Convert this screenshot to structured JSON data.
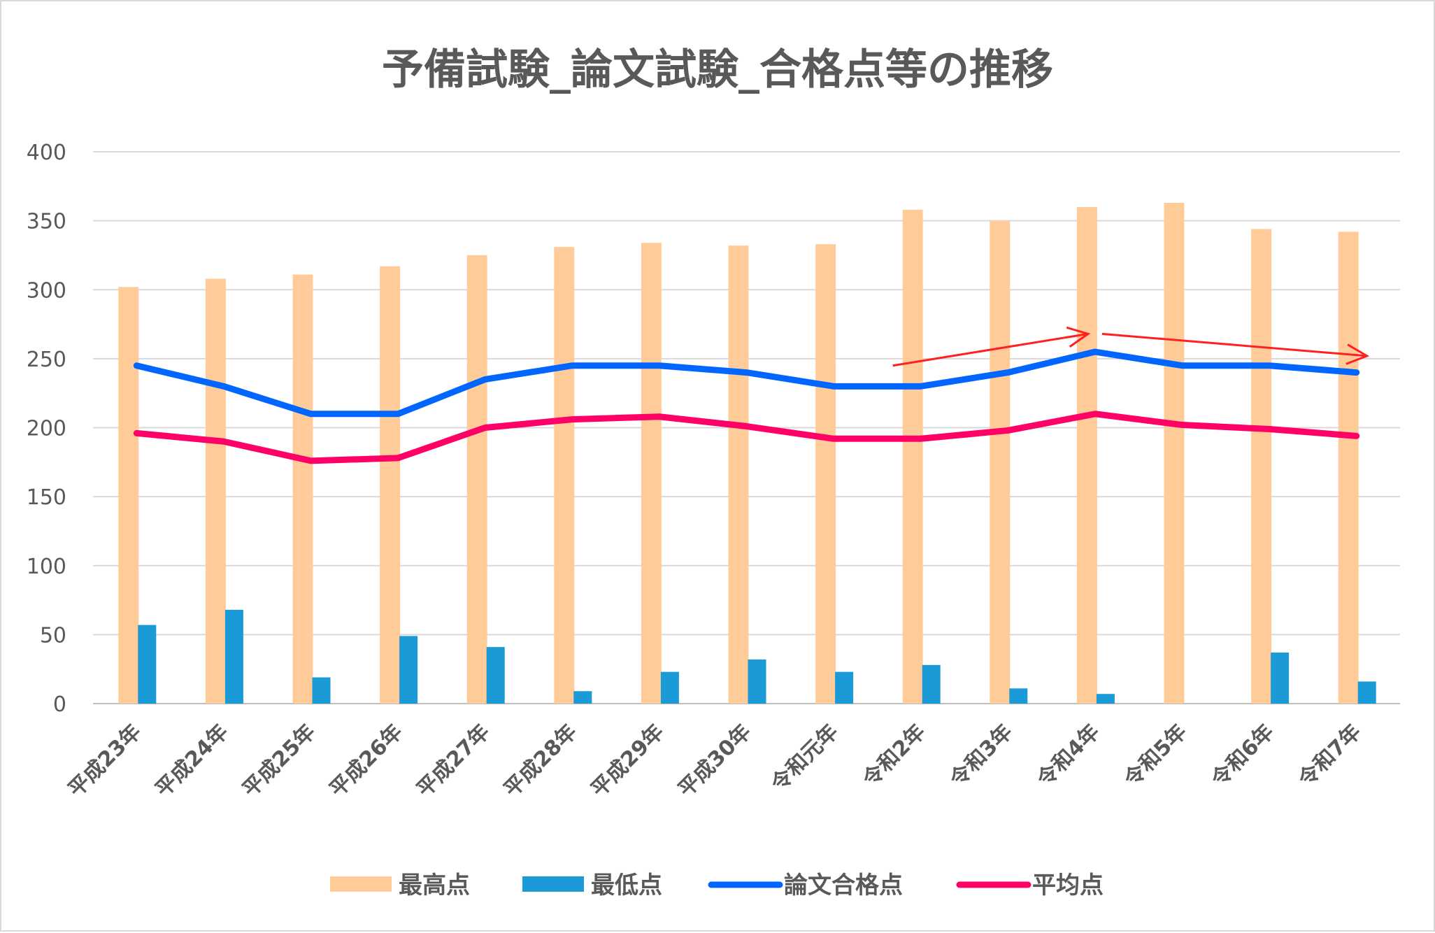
{
  "chart_data": {
    "type": "bar+line",
    "title": "予備試験_論文試験_合格点等の推移",
    "xlabel": "",
    "ylabel": "",
    "ylim": [
      0,
      400
    ],
    "yticks": [
      0,
      50,
      100,
      150,
      200,
      250,
      300,
      350,
      400
    ],
    "grid": true,
    "legend_position": "bottom",
    "categories": [
      "平成23年",
      "平成24年",
      "平成25年",
      "平成26年",
      "平成27年",
      "平成28年",
      "平成29年",
      "平成30年",
      "令和元年",
      "令和2年",
      "令和3年",
      "令和4年",
      "令和5年",
      "令和6年",
      "令和7年"
    ],
    "series": [
      {
        "name": "最高点",
        "type": "bar",
        "color": "#FFCC99",
        "values": [
          302,
          308,
          311,
          317,
          325,
          331,
          334,
          332,
          333,
          358,
          350,
          360,
          363,
          344,
          342
        ]
      },
      {
        "name": "最低点",
        "type": "bar",
        "color": "#1A9AD6",
        "values": [
          57,
          68,
          19,
          49,
          41,
          9,
          23,
          32,
          23,
          28,
          11,
          7,
          0,
          37,
          16
        ]
      },
      {
        "name": "論文合格点",
        "type": "line",
        "color": "#0066FF",
        "values": [
          245,
          230,
          210,
          210,
          235,
          245,
          245,
          240,
          230,
          230,
          240,
          255,
          245,
          245,
          240
        ]
      },
      {
        "name": "平均点",
        "type": "line",
        "color": "#FF0066",
        "values": [
          196,
          190,
          176,
          178,
          200,
          206,
          208,
          201,
          192,
          192,
          198,
          210,
          202,
          199,
          194
        ]
      }
    ],
    "annotations": [
      {
        "type": "arrow",
        "color": "#FF2020",
        "from": [
          "令和2年",
          245
        ],
        "to": [
          "令和4年",
          268
        ]
      },
      {
        "type": "arrow",
        "color": "#FF2020",
        "from": [
          "令和4年",
          268
        ],
        "to": [
          "令和7年",
          252
        ]
      }
    ]
  }
}
